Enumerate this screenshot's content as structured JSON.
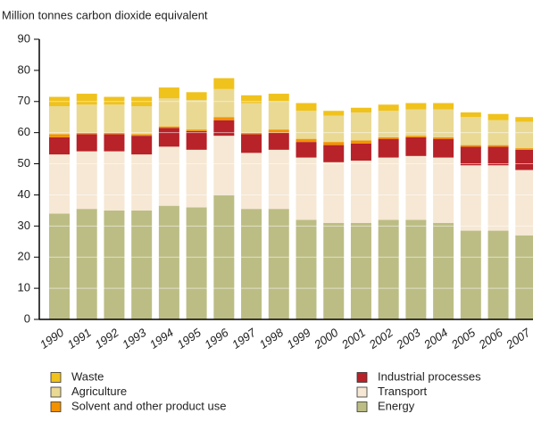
{
  "chart_data": {
    "type": "stacked_bar",
    "y_axis_label": "Million tonnes carbon dioxide equivalent",
    "categories": [
      "1990",
      "1991",
      "1992",
      "1993",
      "1994",
      "1995",
      "1996",
      "1997",
      "1998",
      "1999",
      "2000",
      "2001",
      "2002",
      "2003",
      "2004",
      "2005",
      "2006",
      "2007"
    ],
    "series": [
      {
        "name": "Energy",
        "color": "#bcbd84",
        "values": [
          34,
          35.5,
          35,
          35,
          36.5,
          36,
          40,
          35.5,
          35.5,
          32,
          31,
          31,
          32,
          32,
          31,
          28.5,
          28.5,
          27
        ]
      },
      {
        "name": "Transport",
        "color": "#f6e8d4",
        "values": [
          19,
          18.5,
          19,
          18,
          19,
          18.5,
          19,
          18,
          19,
          20,
          19.5,
          20,
          20,
          20.5,
          21,
          21,
          21,
          21
        ]
      },
      {
        "name": "Industrial processes",
        "color": "#b82229",
        "values": [
          5.5,
          5.5,
          5.5,
          6,
          6,
          6,
          5,
          6,
          5.5,
          5,
          5.5,
          5.5,
          6,
          6,
          6,
          6,
          6,
          6.5
        ]
      },
      {
        "name": "Solvent and other product use",
        "color": "#f39200",
        "values": [
          1,
          0.5,
          0.5,
          0.5,
          0.5,
          0.5,
          1,
          0.5,
          1,
          1,
          1,
          1,
          0.5,
          0.5,
          0.5,
          0.5,
          0.5,
          0.5
        ]
      },
      {
        "name": "Agriculture",
        "color": "#e9d993",
        "values": [
          9,
          9,
          9,
          9,
          9,
          9.5,
          9,
          9.5,
          9,
          9,
          8.5,
          9,
          8.5,
          8.5,
          9,
          9,
          8,
          8.5
        ]
      },
      {
        "name": "Waste",
        "color": "#f0c21c",
        "values": [
          3,
          3.5,
          2.5,
          3,
          3.5,
          2.5,
          3.5,
          2.5,
          2.5,
          2.5,
          1.5,
          1.5,
          2,
          2,
          2,
          1.5,
          2,
          1.5
        ]
      }
    ],
    "ylim": [
      0,
      90
    ],
    "yticks": [
      0,
      10,
      20,
      30,
      40,
      50,
      60,
      70,
      80,
      90
    ],
    "grid": true
  }
}
